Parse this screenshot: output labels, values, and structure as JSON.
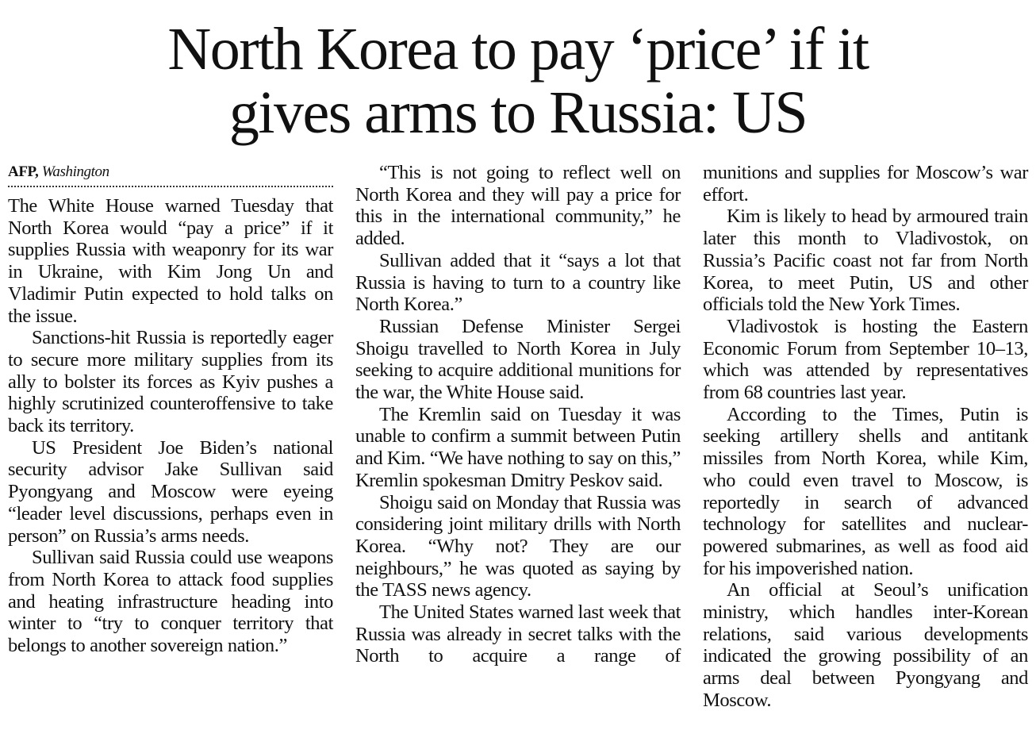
{
  "headline": {
    "line1": "North Korea to pay ‘price’ if it",
    "line2": "gives arms to Russia: US"
  },
  "byline": {
    "agency": "AFP,",
    "location": "Washington"
  },
  "columns": [
    {
      "paragraphs": [
        "The White House warned Tuesday that North Korea would “pay a price” if it supplies Russia with weaponry for its war in Ukraine, with Kim Jong Un and Vladimir Putin expected to hold talks on the issue.",
        "Sanctions-hit Russia is reportedly eager to secure more military supplies from its ally to bolster its forces as Kyiv pushes a highly scrutinized counteroffensive to take back its territory.",
        "US President Joe Biden’s national security advisor Jake Sullivan said Pyongyang and Moscow were eyeing “leader level discussions, perhaps even in person” on Russia’s arms needs.",
        "Sullivan said Russia could use weapons from North Korea to attack food supplies and heating infrastructure heading into winter to “try to conquer territory that belongs to another sovereign nation.”"
      ]
    },
    {
      "paragraphs": [
        "“This is not going to reflect well on North Korea and they will pay a price for this in the international community,” he added.",
        "Sullivan added that it “says a lot that Russia is having to turn to a country like North Korea.”",
        "Russian Defense Minister Sergei Shoigu travelled to North Korea in July seeking to acquire additional munitions for the war, the White House said.",
        "The Kremlin said on Tuesday it was unable to confirm a summit between Putin and Kim. “We have nothing to say on this,” Kremlin spokesman Dmitry Peskov said.",
        "Shoigu said on Monday that Russia was considering joint military drills with North Korea. “Why not? They are our neighbours,” he was quoted as saying by the TASS news agency.",
        "The United States warned last week that Russia was already in secret talks with the North to acquire a range of"
      ]
    },
    {
      "continuation": "munitions and supplies for Moscow’s war effort.",
      "paragraphs": [
        "Kim is likely to head by armoured train later this month to Vladivostok, on Russia’s Pacific coast not far from North Korea, to meet Putin, US and other officials told the New York Times.",
        "Vladivostok is hosting the Eastern Economic Forum from September 10–13, which was attended by representatives from 68 countries last year.",
        "According to the Times, Putin is seeking artillery shells and antitank missiles from North Korea, while Kim, who could even travel to Moscow, is reportedly in search of advanced technology for satellites and nuclear-powered submarines, as well as food aid for his impoverished nation.",
        "An official at Seoul’s unification ministry, which handles inter-Korean relations, said various developments indicated the growing possibility of an arms deal between Pyongyang and Moscow."
      ]
    }
  ]
}
